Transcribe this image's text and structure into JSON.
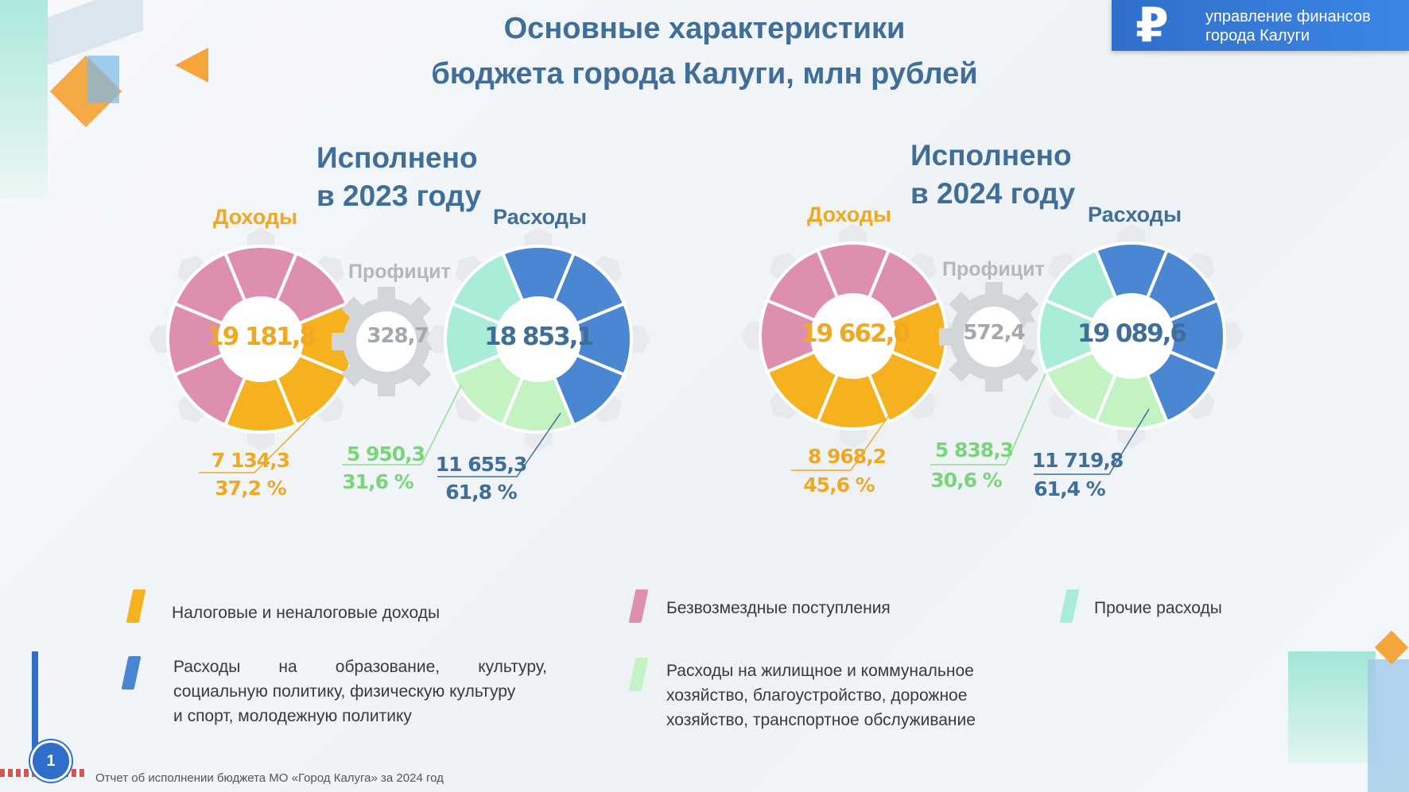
{
  "title": {
    "line1": "Основные характеристики",
    "line2": "бюджета города Калуги, млн рублей"
  },
  "brand": {
    "symbol": "₽",
    "line1": "управление финансов",
    "line2": "города Калуги"
  },
  "colors": {
    "tax": "#f5b21e",
    "gratis": "#de8fb0",
    "other_exp": "#a9ecd8",
    "social_exp": "#4a86d1",
    "housing_exp": "#c3f2c3",
    "surplus": "#d2d6da",
    "title": "#3f6e99"
  },
  "y2023": {
    "heading1": "Исполнено",
    "heading2": "в 2023 году",
    "income_label": "Доходы",
    "expense_label": "Расходы",
    "surplus_label": "Профицит",
    "income_total": "19 181,8",
    "surplus": "328,7",
    "expense_total": "18 853,1",
    "tax_value": "7 134,3",
    "tax_pct": "37,2 %",
    "housing_value": "5 950,3",
    "housing_pct": "31,6 %",
    "social_value": "11 655,3",
    "social_pct": "61,8 %"
  },
  "y2024": {
    "heading1": "Исполнено",
    "heading2": "в 2024 году",
    "income_label": "Доходы",
    "expense_label": "Расходы",
    "surplus_label": "Профицит",
    "income_total": "19 662,0",
    "surplus": "572,4",
    "expense_total": "19 089,6",
    "tax_value": "8 968,2",
    "tax_pct": "45,6 %",
    "housing_value": "5 838,3",
    "housing_pct": "30,6 %",
    "social_value": "11 719,8",
    "social_pct": "61,4 %"
  },
  "legend": {
    "tax": "Налоговые и неналоговые доходы",
    "gratis": "Безвозмездные поступления",
    "other": "Прочие расходы",
    "social_l1": "Расходы на образование, культуру,",
    "social_l2": "социальную политику, физическую культуру",
    "social_l3": "и спорт, молодежную политику",
    "housing_l1": "Расходы на жилищное и коммунальное",
    "housing_l2": "хозяйство, благоустройство, дорожное",
    "housing_l3": "хозяйство, транспортное обслуживание"
  },
  "footer": "Отчет об исполнении бюджета МО «Город Калуга» за 2024 год",
  "page_number": "1"
}
